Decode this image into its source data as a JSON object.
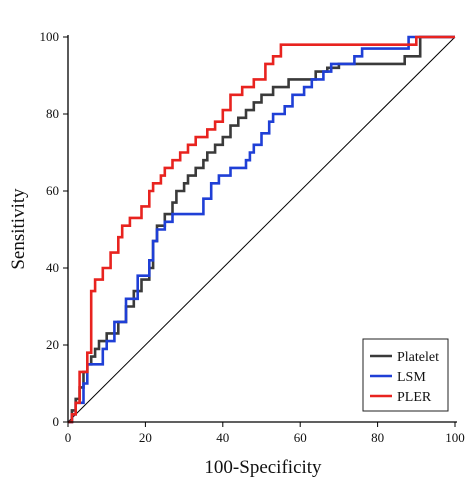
{
  "chart_data": {
    "type": "line",
    "title": "",
    "xlabel": "100-Specificity",
    "ylabel": "Sensitivity",
    "xlim": [
      0,
      100
    ],
    "ylim": [
      0,
      100
    ],
    "x_ticks": [
      0,
      20,
      40,
      60,
      80,
      100
    ],
    "y_ticks": [
      0,
      20,
      40,
      60,
      80,
      100
    ],
    "grid": false,
    "legend_position": "bottom-right",
    "reference_line": {
      "x": [
        0,
        100
      ],
      "y": [
        0,
        100
      ],
      "color": "#000000"
    },
    "series": [
      {
        "name": "Platelet",
        "color": "#3a3a3a",
        "x": [
          0,
          1,
          1,
          2,
          2,
          3,
          3,
          4,
          4,
          5,
          5,
          6,
          6,
          7,
          7,
          8,
          8,
          10,
          10,
          13,
          13,
          15,
          15,
          17,
          17,
          19,
          19,
          21,
          21,
          22,
          22,
          23,
          23,
          25,
          25,
          27,
          27,
          28,
          28,
          30,
          30,
          31,
          31,
          33,
          33,
          35,
          35,
          36,
          36,
          38,
          38,
          40,
          40,
          42,
          42,
          44,
          44,
          46,
          46,
          48,
          48,
          50,
          50,
          53,
          53,
          57,
          57,
          64,
          64,
          67,
          67,
          70,
          70,
          87,
          87,
          91,
          91,
          100
        ],
        "y": [
          0,
          0,
          3,
          3,
          6,
          6,
          9,
          9,
          13,
          13,
          15,
          15,
          17,
          17,
          19,
          19,
          21,
          21,
          23,
          23,
          26,
          26,
          30,
          30,
          34,
          34,
          37,
          37,
          40,
          40,
          47,
          47,
          51,
          51,
          54,
          54,
          57,
          57,
          60,
          60,
          62,
          62,
          64,
          64,
          66,
          66,
          68,
          68,
          70,
          70,
          72,
          72,
          74,
          74,
          77,
          77,
          79,
          79,
          81,
          81,
          83,
          83,
          85,
          85,
          87,
          87,
          89,
          89,
          91,
          91,
          92,
          92,
          93,
          93,
          95,
          95,
          100,
          100
        ]
      },
      {
        "name": "LSM",
        "color": "#1f3fd6",
        "x": [
          0,
          1,
          1,
          2,
          2,
          4,
          4,
          5,
          5,
          9,
          9,
          10,
          10,
          12,
          12,
          15,
          15,
          18,
          18,
          21,
          21,
          22,
          22,
          23,
          23,
          25,
          25,
          27,
          27,
          35,
          35,
          37,
          37,
          39,
          39,
          42,
          42,
          46,
          46,
          47,
          47,
          48,
          48,
          50,
          50,
          52,
          52,
          53,
          53,
          56,
          56,
          58,
          58,
          61,
          61,
          63,
          63,
          66,
          66,
          68,
          68,
          74,
          74,
          76,
          76,
          88,
          88,
          91,
          91,
          100
        ],
        "y": [
          0,
          0,
          2,
          2,
          5,
          5,
          10,
          10,
          15,
          15,
          19,
          19,
          21,
          21,
          26,
          26,
          32,
          32,
          38,
          38,
          42,
          42,
          47,
          47,
          50,
          50,
          52,
          52,
          54,
          54,
          58,
          58,
          62,
          62,
          64,
          64,
          66,
          66,
          68,
          68,
          70,
          70,
          72,
          72,
          75,
          75,
          78,
          78,
          80,
          80,
          82,
          82,
          85,
          85,
          87,
          87,
          89,
          89,
          91,
          91,
          93,
          93,
          95,
          95,
          97,
          97,
          100,
          100,
          100,
          100
        ]
      },
      {
        "name": "PLER",
        "color": "#e8231f",
        "x": [
          0,
          1,
          1,
          2,
          2,
          3,
          3,
          5,
          5,
          6,
          6,
          7,
          7,
          9,
          9,
          11,
          11,
          13,
          13,
          14,
          14,
          16,
          16,
          19,
          19,
          21,
          21,
          22,
          22,
          24,
          24,
          25,
          25,
          27,
          27,
          29,
          29,
          31,
          31,
          33,
          33,
          36,
          36,
          38,
          38,
          40,
          40,
          42,
          42,
          45,
          45,
          48,
          48,
          51,
          51,
          53,
          53,
          55,
          55,
          57,
          57,
          90,
          90,
          100
        ],
        "y": [
          0,
          0,
          2,
          2,
          5,
          5,
          13,
          13,
          18,
          18,
          34,
          34,
          37,
          37,
          40,
          40,
          44,
          44,
          48,
          48,
          51,
          51,
          53,
          53,
          56,
          56,
          60,
          60,
          62,
          62,
          64,
          64,
          66,
          66,
          68,
          68,
          70,
          70,
          72,
          72,
          74,
          74,
          76,
          76,
          78,
          78,
          81,
          81,
          85,
          85,
          87,
          87,
          89,
          89,
          93,
          93,
          95,
          95,
          98,
          98,
          98,
          98,
          100,
          100
        ]
      }
    ]
  }
}
